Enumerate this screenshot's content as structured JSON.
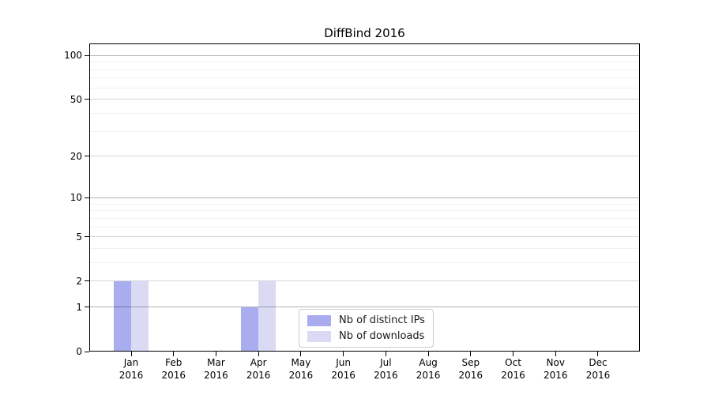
{
  "chart_data": {
    "type": "bar",
    "title": "DiffBind 2016",
    "categories": [
      "Jan 2016",
      "Feb 2016",
      "Mar 2016",
      "Apr 2016",
      "May 2016",
      "Jun 2016",
      "Jul 2016",
      "Aug 2016",
      "Sep 2016",
      "Oct 2016",
      "Nov 2016",
      "Dec 2016"
    ],
    "series": [
      {
        "name": "Nb of distinct IPs",
        "color": "#aaacf0",
        "values": [
          2,
          0,
          0,
          1,
          0,
          0,
          0,
          0,
          0,
          0,
          0,
          0
        ]
      },
      {
        "name": "Nb of downloads",
        "color": "#dadaf5",
        "values": [
          2,
          0,
          0,
          2,
          0,
          0,
          0,
          0,
          0,
          0,
          0,
          0
        ]
      }
    ],
    "yscale": "log1p",
    "ylim": [
      0,
      121
    ],
    "yticks": [
      0,
      1,
      2,
      5,
      10,
      20,
      50,
      100
    ],
    "gridlines": {
      "decade": [
        1,
        10,
        100
      ],
      "labeled": [
        2,
        5,
        20,
        50
      ],
      "minor": [
        3,
        4,
        6,
        7,
        8,
        9,
        30,
        40,
        60,
        70,
        80,
        90
      ]
    },
    "legend": {
      "position": "lower-center",
      "entries": [
        "Nb of distinct IPs",
        "Nb of downloads"
      ]
    },
    "colors": {
      "axis": "#000000",
      "background": "#ffffff",
      "grid_major": "#b5b5b5",
      "grid_minor": "#ededed"
    }
  }
}
